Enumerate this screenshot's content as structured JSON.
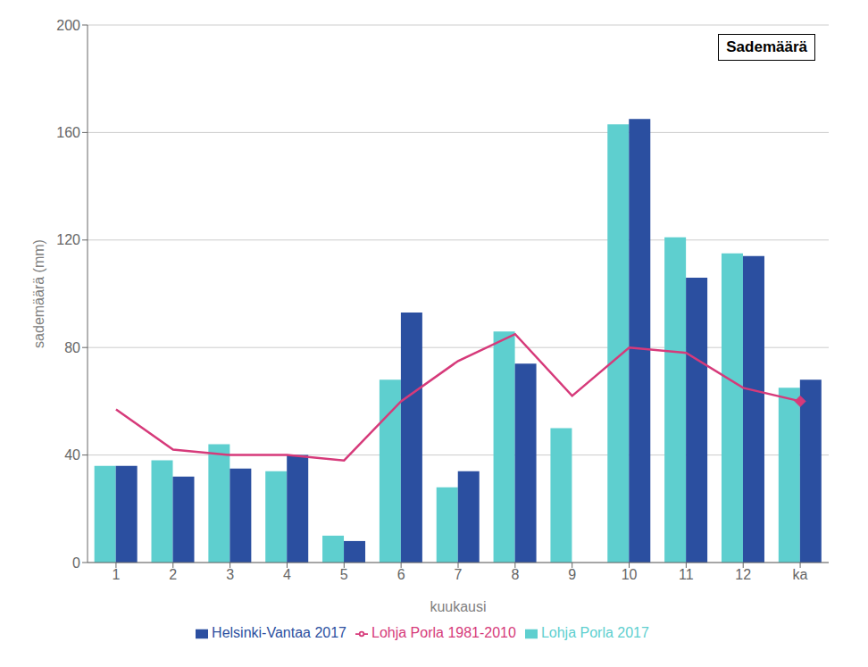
{
  "chart_data": {
    "type": "bar",
    "title": "Sademäärä",
    "xlabel": "kuukausi",
    "ylabel": "sademäärä (mm)",
    "categories": [
      "1",
      "2",
      "3",
      "4",
      "5",
      "6",
      "7",
      "8",
      "9",
      "10",
      "11",
      "12",
      "ka"
    ],
    "series": [
      {
        "name": "Lohja Porla 2017",
        "type": "bar",
        "color": "#5ecfcf",
        "values": [
          36,
          38,
          44,
          34,
          10,
          68,
          28,
          86,
          50,
          163,
          121,
          115,
          65
        ]
      },
      {
        "name": "Helsinki-Vantaa 2017",
        "type": "bar",
        "color": "#2b4fa0",
        "values": [
          36,
          32,
          35,
          40,
          8,
          93,
          34,
          74,
          0,
          165,
          106,
          114,
          68
        ]
      },
      {
        "name": "Lohja Porla 1981-2010",
        "type": "line",
        "color": "#d63a7a",
        "values": [
          57,
          42,
          40,
          40,
          38,
          60,
          75,
          85,
          62,
          80,
          78,
          65,
          60
        ]
      }
    ],
    "ylim": [
      0,
      200
    ],
    "yticks": [
      0,
      40,
      80,
      120,
      160,
      200
    ],
    "grid": true,
    "legend": "bottom"
  }
}
